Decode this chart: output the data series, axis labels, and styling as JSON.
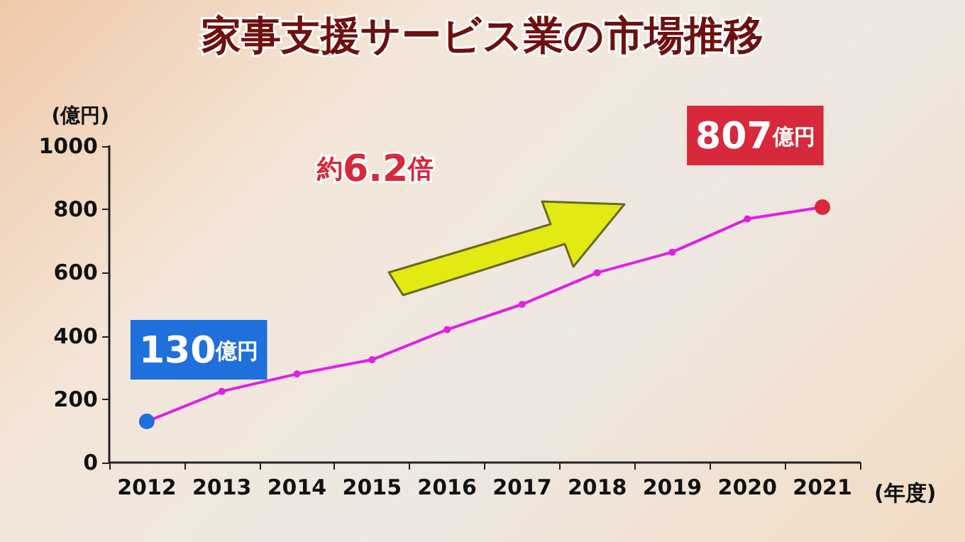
{
  "chart_data": {
    "type": "line",
    "title": "家事支援サービス業の市場推移",
    "ylabel": "(億円)",
    "xlabel": "(年度)",
    "categories": [
      "2012",
      "2013",
      "2014",
      "2015",
      "2016",
      "2017",
      "2018",
      "2019",
      "2020",
      "2021"
    ],
    "series": [
      {
        "color": "#e21ee6",
        "values": [
          130,
          225,
          280,
          325,
          420,
          500,
          600,
          665,
          770,
          807
        ],
        "colors": [
          "#1f6fdc",
          "#e21ee6",
          "#e21ee6",
          "#e21ee6",
          "#e21ee6",
          "#e21ee6",
          "#e21ee6",
          "#e21ee6",
          "#e21ee6",
          "#d7283c"
        ],
        "value_labels": [
          "130億円",
          null,
          null,
          null,
          null,
          null,
          null,
          null,
          null,
          "807億円"
        ]
      }
    ],
    "ylim": [
      0,
      1000
    ],
    "yticks": [
      0,
      200,
      400,
      600,
      800,
      1000
    ],
    "grid": false,
    "marker": "circle",
    "line_style": "solid",
    "annotations": [
      "約6.2倍"
    ]
  }
}
